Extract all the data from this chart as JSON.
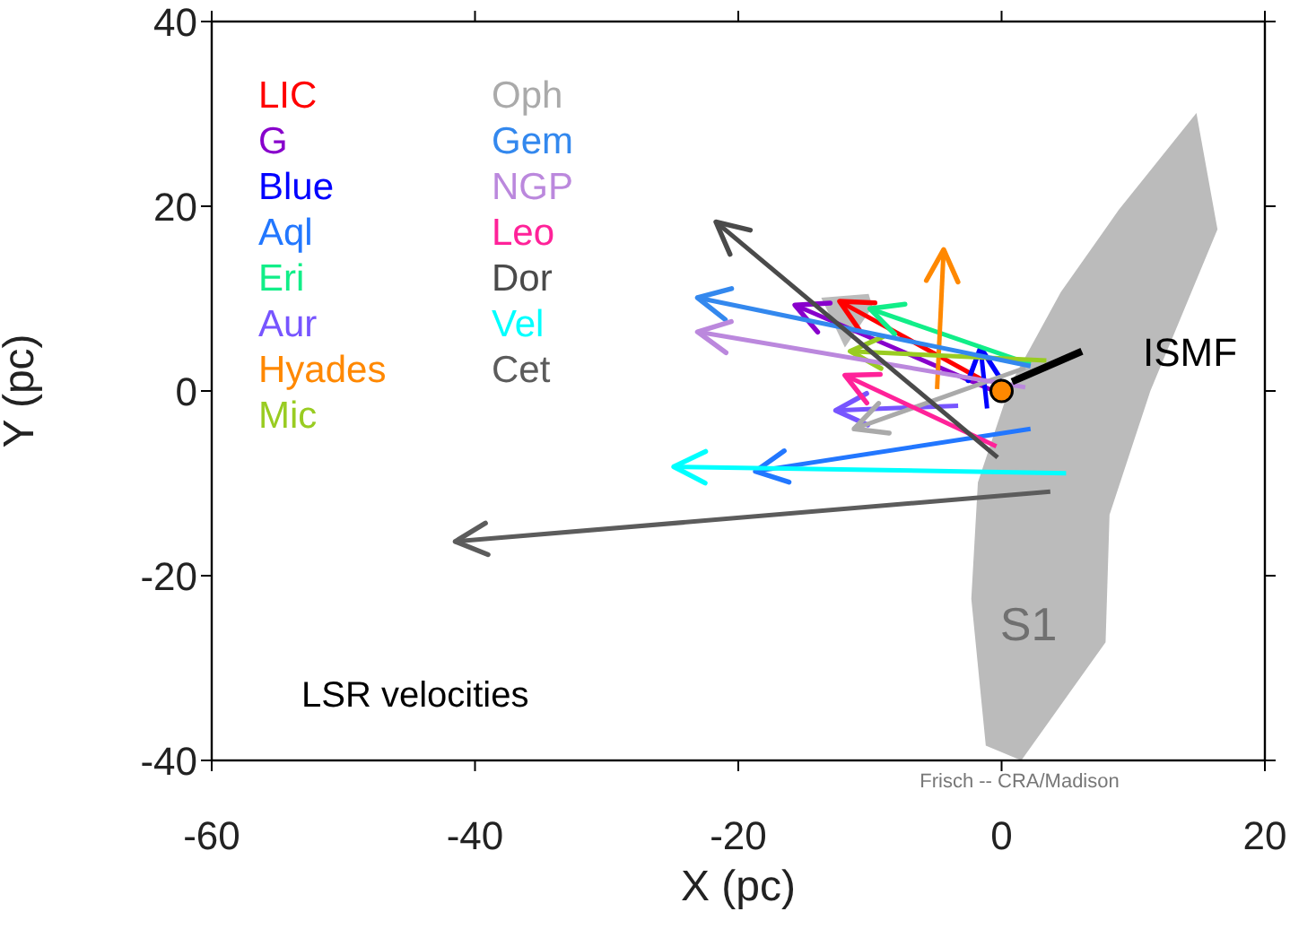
{
  "chart_data": {
    "type": "line",
    "xlabel": "X (pc)",
    "ylabel": "Y (pc)",
    "xlim": [
      -60,
      20
    ],
    "ylim": [
      -40,
      40
    ],
    "xticks": [
      -60,
      -40,
      -20,
      0,
      20
    ],
    "yticks": [
      -40,
      -20,
      0,
      20,
      40
    ],
    "legend": "top left",
    "line_style": "solid",
    "annotations": [
      "LSR velocities",
      "Frisch -- CRA/Madison"
    ],
    "series": [
      {
        "name": "LIC",
        "color": "#ff0000",
        "x": [
          -1.2,
          -12.3
        ],
        "values": [
          1.0,
          9.7
        ]
      },
      {
        "name": "G",
        "color": "#8800cc",
        "x": [
          0.4,
          -15.7
        ],
        "values": [
          -0.6,
          9.3
        ]
      },
      {
        "name": "Blue",
        "color": "#0000ff",
        "x": [
          -1.1,
          -1.6
        ],
        "values": [
          -1.9,
          4.7
        ]
      },
      {
        "name": "Aql",
        "color": "#2277ff",
        "x": [
          2.2,
          -18.7
        ],
        "values": [
          -4.1,
          -8.7
        ]
      },
      {
        "name": "Eri",
        "color": "#11ee88",
        "x": [
          2.2,
          -10.0
        ],
        "values": [
          2.9,
          8.9
        ]
      },
      {
        "name": "Aur",
        "color": "#7755ff",
        "x": [
          -3.3,
          -12.6
        ],
        "values": [
          -1.6,
          -2.1
        ]
      },
      {
        "name": "Hyades",
        "color": "#ff8800",
        "x": [
          -4.9,
          -4.4
        ],
        "values": [
          0.2,
          15.3
        ]
      },
      {
        "name": "Mic",
        "color": "#99cc22",
        "x": [
          3.4,
          -11.5
        ],
        "values": [
          3.3,
          4.3
        ]
      },
      {
        "name": "Oph",
        "color": "#aaaaaa",
        "x": [
          1.8,
          -11.2
        ],
        "values": [
          2.5,
          -4.1
        ]
      },
      {
        "name": "Gem",
        "color": "#3388ee",
        "x": [
          2.2,
          -23.1
        ],
        "values": [
          2.7,
          10.1
        ]
      },
      {
        "name": "NGP",
        "color": "#bb88dd",
        "x": [
          1.8,
          -23.1
        ],
        "values": [
          0.4,
          6.4
        ]
      },
      {
        "name": "Leo",
        "color": "#ff2299",
        "x": [
          -0.4,
          -11.9
        ],
        "values": [
          -6.0,
          1.7
        ]
      },
      {
        "name": "Dor",
        "color": "#4a4a4a",
        "x": [
          -0.3,
          -21.7
        ],
        "values": [
          -7.2,
          18.3
        ]
      },
      {
        "name": "Vel",
        "color": "#00ffff",
        "x": [
          4.9,
          -24.9
        ],
        "values": [
          -8.9,
          -8.2
        ]
      },
      {
        "name": "Cet",
        "color": "#5c5c5c",
        "x": [
          3.7,
          -41.5
        ],
        "values": [
          -10.9,
          -16.3
        ]
      },
      {
        "type": "scatter",
        "color": "#ff8800",
        "x": [
          0
        ],
        "values": [
          0
        ]
      },
      {
        "name": "ISMF",
        "color": "#000000",
        "x": [
          0.8,
          6.1
        ],
        "values": [
          1.0,
          4.3
        ]
      },
      {
        "type": "area",
        "name": "S1",
        "color": "#bbbbbb",
        "x": [
          14.8,
          16.4,
          11.3,
          8.2,
          7.9,
          1.5,
          -1.2,
          -2.3,
          -1.8,
          0.7,
          4.5,
          8.9
        ],
        "values": [
          30.1,
          17.5,
          0,
          -13.4,
          -27.2,
          -40,
          -38.4,
          -22.5,
          -9.9,
          0.8,
          10.7,
          19.6
        ]
      },
      {
        "type": "area",
        "color": "#bbbbbb",
        "x": [
          -13.7,
          -10.1,
          -9.8,
          -11.9
        ],
        "values": [
          10.1,
          10.5,
          9.1,
          4.7
        ]
      }
    ]
  }
}
